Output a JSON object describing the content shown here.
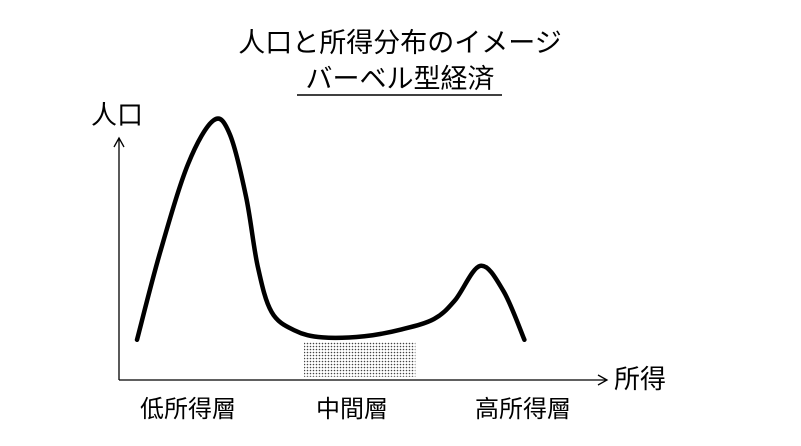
{
  "chart_data": {
    "type": "line",
    "title": "人口と所得分布のイメージ",
    "subtitle": "バーベル型経済",
    "ylabel": "人口",
    "xlabel": "所得",
    "grid": false,
    "series": [
      {
        "values": [
          {
            "x": 0.0,
            "y": 0.04
          },
          {
            "x": 0.05,
            "y": 0.42
          },
          {
            "x": 0.11,
            "y": 0.8
          },
          {
            "x": 0.165,
            "y": 0.99
          },
          {
            "x": 0.2,
            "y": 0.93
          },
          {
            "x": 0.235,
            "y": 0.66
          },
          {
            "x": 0.26,
            "y": 0.36
          },
          {
            "x": 0.29,
            "y": 0.16
          },
          {
            "x": 0.34,
            "y": 0.08
          },
          {
            "x": 0.4,
            "y": 0.05
          },
          {
            "x": 0.49,
            "y": 0.055
          },
          {
            "x": 0.57,
            "y": 0.085
          },
          {
            "x": 0.64,
            "y": 0.13
          },
          {
            "x": 0.685,
            "y": 0.21
          },
          {
            "x": 0.74,
            "y": 0.36
          },
          {
            "x": 0.79,
            "y": 0.25
          },
          {
            "x": 0.835,
            "y": 0.04
          }
        ]
      }
    ],
    "band": {
      "x0": 0.36,
      "x1": 0.6,
      "label": "中間層"
    },
    "categories": [
      "低所得層",
      "中間層",
      "高所得層"
    ],
    "category_positions": [
      0.14,
      0.48,
      0.82
    ]
  }
}
